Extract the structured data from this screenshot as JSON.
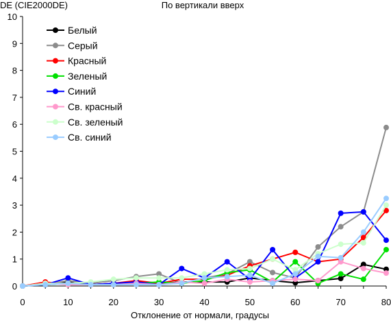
{
  "chart_data": {
    "type": "line",
    "title": "По вертикали вверх",
    "ylabel": "DE (CIE2000DE)",
    "xlabel": "Отклонение от нормали, градусы",
    "x": [
      0,
      5,
      10,
      15,
      20,
      25,
      30,
      35,
      40,
      45,
      50,
      55,
      60,
      65,
      70,
      75,
      80
    ],
    "xticks": [
      0,
      10,
      20,
      30,
      40,
      50,
      60,
      70,
      80
    ],
    "yticks": [
      0,
      1,
      2,
      3,
      4,
      5,
      6,
      7,
      8,
      9,
      10
    ],
    "xlim": [
      0,
      80
    ],
    "ylim": [
      0,
      10
    ],
    "legend_position": "top-left",
    "grid": false,
    "series": [
      {
        "name": "Белый",
        "color": "#000000",
        "values": [
          0,
          0.05,
          0.15,
          0.05,
          0.1,
          0.15,
          0.1,
          0.15,
          0.15,
          0.15,
          0.3,
          0.2,
          0.12,
          0.2,
          0.28,
          0.8,
          0.62
        ]
      },
      {
        "name": "Серый",
        "color": "#8c8c8c",
        "values": [
          0,
          0.05,
          0.2,
          0.1,
          0.2,
          0.35,
          0.45,
          0.1,
          0.3,
          0.45,
          0.9,
          0.5,
          0.3,
          1.45,
          2.2,
          2.75,
          5.88
        ]
      },
      {
        "name": "Красный",
        "color": "#ff0000",
        "values": [
          0,
          0.15,
          0.05,
          0.05,
          0.1,
          0.2,
          0.1,
          0.25,
          0.25,
          0.4,
          0.75,
          1.0,
          1.25,
          0.9,
          1.0,
          1.8,
          2.8
        ]
      },
      {
        "name": "Зеленый",
        "color": "#00e000",
        "values": [
          0,
          0.05,
          0.1,
          0.05,
          0.05,
          0.1,
          0.15,
          0.1,
          0.2,
          0.5,
          0.6,
          0.15,
          0.9,
          0.1,
          0.45,
          0.25,
          1.35
        ]
      },
      {
        "name": "Синий",
        "color": "#0000ff",
        "values": [
          0,
          0.05,
          0.3,
          0.05,
          0.1,
          0.15,
          0.05,
          0.65,
          0.3,
          0.9,
          0.25,
          1.35,
          0.3,
          0.9,
          2.7,
          2.75,
          1.7
        ]
      },
      {
        "name": "Св. красный",
        "color": "#ff99cc",
        "values": [
          0,
          0.1,
          0.05,
          0.05,
          0.05,
          0.1,
          0.05,
          0.15,
          0.1,
          0.25,
          0.15,
          0.2,
          0.25,
          0.2,
          0.9,
          0.65,
          0.48
        ]
      },
      {
        "name": "Св. зеленый",
        "color": "#ccffcc",
        "values": [
          0,
          0.1,
          0.1,
          0.15,
          0.25,
          0.3,
          0.3,
          0.3,
          0.45,
          0.6,
          0.65,
          1.0,
          0.6,
          1.2,
          1.55,
          1.6,
          3.0
        ]
      },
      {
        "name": "Св. синий",
        "color": "#99ccff",
        "values": [
          0,
          0.05,
          0.1,
          0.05,
          0.05,
          0.05,
          0.05,
          0.1,
          0.3,
          0.35,
          0.4,
          0.1,
          0.45,
          1.1,
          1.05,
          2.0,
          3.25
        ]
      }
    ]
  }
}
